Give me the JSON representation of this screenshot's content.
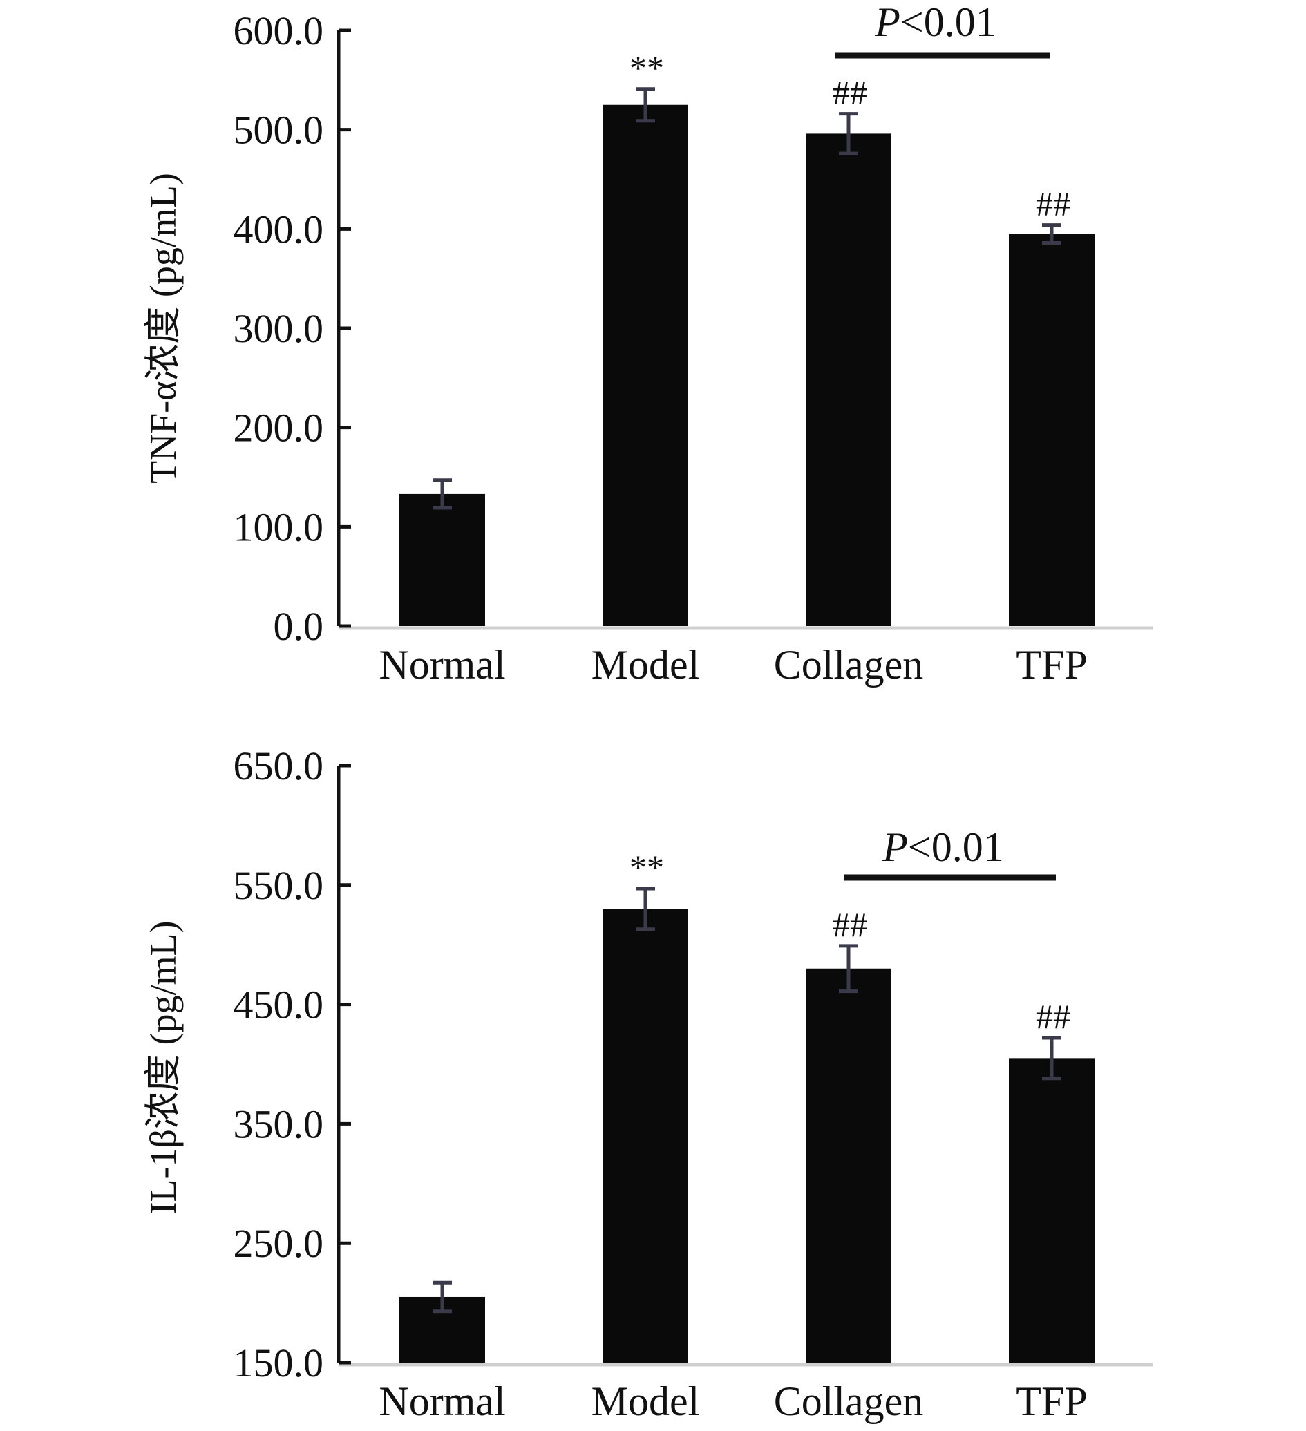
{
  "chart_data": [
    {
      "type": "bar",
      "categories": [
        "Normal",
        "Model",
        "Collagen",
        "TFP"
      ],
      "values": [
        133,
        525,
        496,
        395
      ],
      "errors": [
        14,
        16,
        20,
        9
      ],
      "annotations": [
        "",
        "**",
        "##",
        "##"
      ],
      "bracket": {
        "from": "Collagen",
        "to": "TFP",
        "label_italic": "P",
        "label_rest": "<0.01"
      },
      "ylabel": "TNF-α浓度 (pg/mL)",
      "ylim": [
        0,
        600
      ],
      "yticks": [
        "0.0",
        "100.0",
        "200.0",
        "300.0",
        "400.0",
        "500.0",
        "600.0"
      ],
      "grid": false,
      "bar_color": "#0a0a0a"
    },
    {
      "type": "bar",
      "categories": [
        "Normal",
        "Model",
        "Collagen",
        "TFP"
      ],
      "values": [
        205,
        530,
        480,
        405
      ],
      "errors": [
        12,
        17,
        19,
        17
      ],
      "annotations": [
        "",
        "**",
        "##",
        "##"
      ],
      "bracket": {
        "from": "Collagen",
        "to": "TFP",
        "label_italic": "P",
        "label_rest": "<0.01"
      },
      "ylabel": "IL-1β浓度 (pg/mL)",
      "ylim": [
        150,
        650
      ],
      "yticks": [
        "150.0",
        "250.0",
        "350.0",
        "450.0",
        "550.0",
        "650.0"
      ],
      "grid": false,
      "bar_color": "#0a0a0a"
    }
  ]
}
